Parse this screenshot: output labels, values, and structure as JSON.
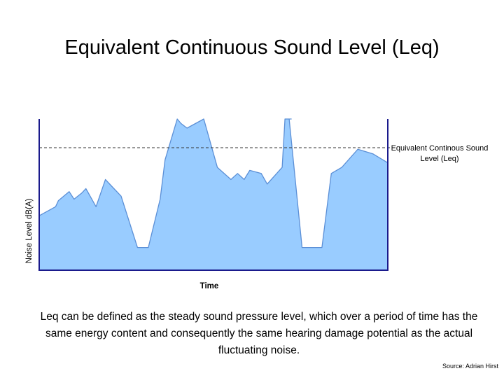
{
  "slide": {
    "title": "Equivalent Continuous Sound Level (Leq)",
    "caption": "Leq can be defined as the steady sound pressure level, which over a period of time has the same energy content and consequently the same hearing damage potential as the actual fluctuating noise.",
    "source": "Source: Adrian Hirst"
  },
  "chart_data": {
    "type": "area",
    "title": "",
    "xlabel": "Time",
    "ylabel": "Noise Level dB(A)",
    "xlim": [
      0,
      100
    ],
    "ylim": [
      0,
      100
    ],
    "grid": false,
    "legend": "none",
    "x": [
      0,
      4.7,
      5.5,
      8.6,
      10.0,
      12.2,
      13.4,
      16.3,
      19.0,
      20.6,
      23.5,
      28.2,
      31.3,
      34.7,
      36.1,
      39.6,
      40.7,
      42.4,
      47.2,
      51.1,
      55.0,
      56.9,
      58.8,
      60.4,
      63.7,
      65.4,
      69.7,
      70.5,
      72.3,
      71.7,
      75.4,
      77.4,
      79.5,
      81.1,
      83.8,
      86.8,
      91.4,
      95.7,
      100
    ],
    "series": [
      {
        "name": "",
        "values": [
          36,
          42,
          46,
          52,
          47,
          51,
          54,
          42,
          60,
          56,
          49,
          15,
          15,
          47,
          73,
          100,
          97,
          94,
          100,
          68,
          60,
          64,
          60,
          66,
          64,
          57,
          68,
          100,
          100,
          100,
          15,
          15,
          15,
          15,
          64,
          68,
          80,
          77,
          71
        ],
        "color": "#99ccff"
      }
    ],
    "reference_line": {
      "label": "Equivalent Continous Sound Level (Leq)",
      "value": 81,
      "style": "dashed"
    },
    "colors": {
      "fill": "#99ccff",
      "line": "#5b8fd6",
      "axis": "#1a1a8c",
      "leq": "#333333"
    }
  }
}
